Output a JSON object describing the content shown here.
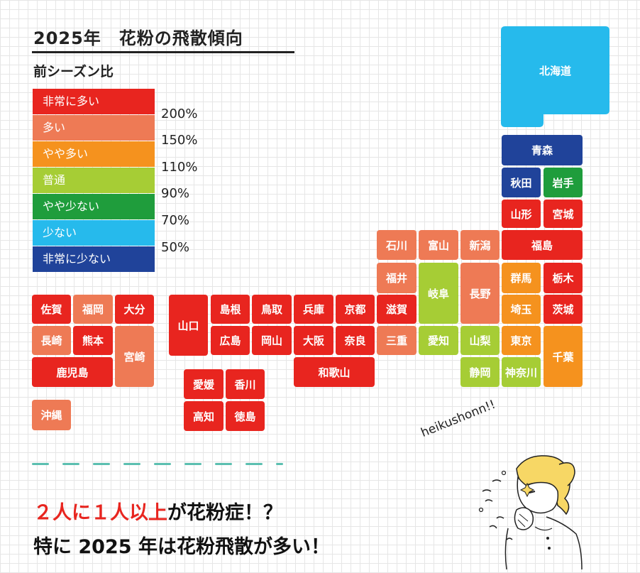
{
  "header": {
    "title": "2025年　花粉の飛散傾向",
    "subtitle": "前シーズン比"
  },
  "legend": {
    "levels": [
      {
        "label": "非常に多い",
        "color": "#e8251f"
      },
      {
        "label": "多い",
        "color": "#ee7a55"
      },
      {
        "label": "やや多い",
        "color": "#f5921e"
      },
      {
        "label": "普通",
        "color": "#a6cd35"
      },
      {
        "label": "やや少ない",
        "color": "#1f9d3c"
      },
      {
        "label": "少ない",
        "color": "#26baec"
      },
      {
        "label": "非常に少ない",
        "color": "#20439a"
      }
    ],
    "thresholds": [
      "200%",
      "150%",
      "110%",
      "90%",
      "70%",
      "50%"
    ]
  },
  "map": {
    "prefectures": [
      {
        "name": "北海道",
        "level": "少ない"
      },
      {
        "name": "青森",
        "level": "非常に少ない"
      },
      {
        "name": "秋田",
        "level": "非常に少ない"
      },
      {
        "name": "岩手",
        "level": "やや少ない"
      },
      {
        "name": "山形",
        "level": "非常に多い"
      },
      {
        "name": "宮城",
        "level": "非常に多い"
      },
      {
        "name": "福島",
        "level": "非常に多い"
      },
      {
        "name": "石川",
        "level": "多い"
      },
      {
        "name": "富山",
        "level": "多い"
      },
      {
        "name": "新潟",
        "level": "多い"
      },
      {
        "name": "福井",
        "level": "多い"
      },
      {
        "name": "岐阜",
        "level": "普通"
      },
      {
        "name": "長野",
        "level": "多い"
      },
      {
        "name": "群馬",
        "level": "やや多い"
      },
      {
        "name": "栃木",
        "level": "非常に多い"
      },
      {
        "name": "埼玉",
        "level": "やや多い"
      },
      {
        "name": "茨城",
        "level": "非常に多い"
      },
      {
        "name": "滋賀",
        "level": "非常に多い"
      },
      {
        "name": "三重",
        "level": "多い"
      },
      {
        "name": "愛知",
        "level": "普通"
      },
      {
        "name": "山梨",
        "level": "普通"
      },
      {
        "name": "東京",
        "level": "やや多い"
      },
      {
        "name": "千葉",
        "level": "やや多い"
      },
      {
        "name": "静岡",
        "level": "普通"
      },
      {
        "name": "神奈川",
        "level": "普通"
      },
      {
        "name": "島根",
        "level": "非常に多い"
      },
      {
        "name": "鳥取",
        "level": "非常に多い"
      },
      {
        "name": "兵庫",
        "level": "非常に多い"
      },
      {
        "name": "京都",
        "level": "非常に多い"
      },
      {
        "name": "山口",
        "level": "非常に多い"
      },
      {
        "name": "広島",
        "level": "非常に多い"
      },
      {
        "name": "岡山",
        "level": "非常に多い"
      },
      {
        "name": "大阪",
        "level": "非常に多い"
      },
      {
        "name": "奈良",
        "level": "非常に多い"
      },
      {
        "name": "和歌山",
        "level": "非常に多い"
      },
      {
        "name": "愛媛",
        "level": "非常に多い"
      },
      {
        "name": "香川",
        "level": "非常に多い"
      },
      {
        "name": "高知",
        "level": "非常に多い"
      },
      {
        "name": "徳島",
        "level": "非常に多い"
      },
      {
        "name": "佐賀",
        "level": "非常に多い"
      },
      {
        "name": "福岡",
        "level": "多い"
      },
      {
        "name": "大分",
        "level": "非常に多い"
      },
      {
        "name": "長崎",
        "level": "多い"
      },
      {
        "name": "熊本",
        "level": "非常に多い"
      },
      {
        "name": "宮崎",
        "level": "多い"
      },
      {
        "name": "鹿児島",
        "level": "非常に多い"
      },
      {
        "name": "沖縄",
        "level": "多い"
      }
    ]
  },
  "footer": {
    "line1_red": "２人に１人以上",
    "line1_rest": "が花粉症！？",
    "line2": "特に 2025 年は花粉飛散が多い！",
    "sneeze_text": "heikushonn!!"
  }
}
